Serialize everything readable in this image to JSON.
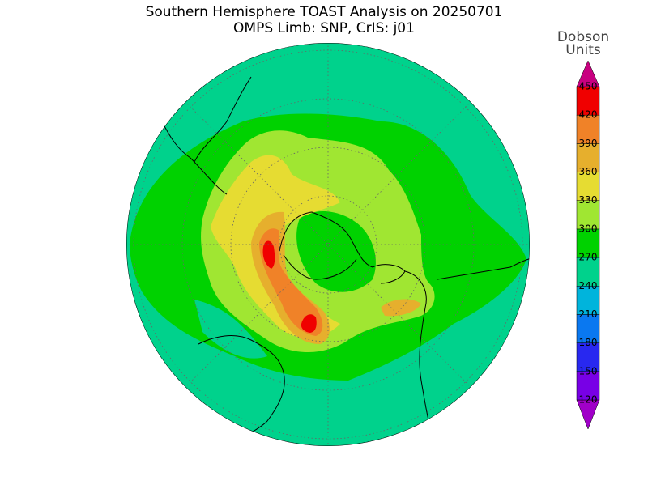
{
  "title": [
    "Southern Hemisphere TOAST Analysis on 20250701",
    "OMPS Limb: SNP, CrIS: j01"
  ],
  "colorbar": {
    "label": [
      "Dobson",
      "Units"
    ],
    "levels": [
      120,
      150,
      180,
      210,
      240,
      270,
      300,
      330,
      360,
      390,
      420,
      450
    ],
    "colors": [
      "#a000c8",
      "#7800e6",
      "#2828f0",
      "#0a78f0",
      "#00b4dc",
      "#00d28c",
      "#00d200",
      "#a0e632",
      "#e6dc32",
      "#e6af2d",
      "#f08228",
      "#f00000",
      "#c80080"
    ]
  }
}
